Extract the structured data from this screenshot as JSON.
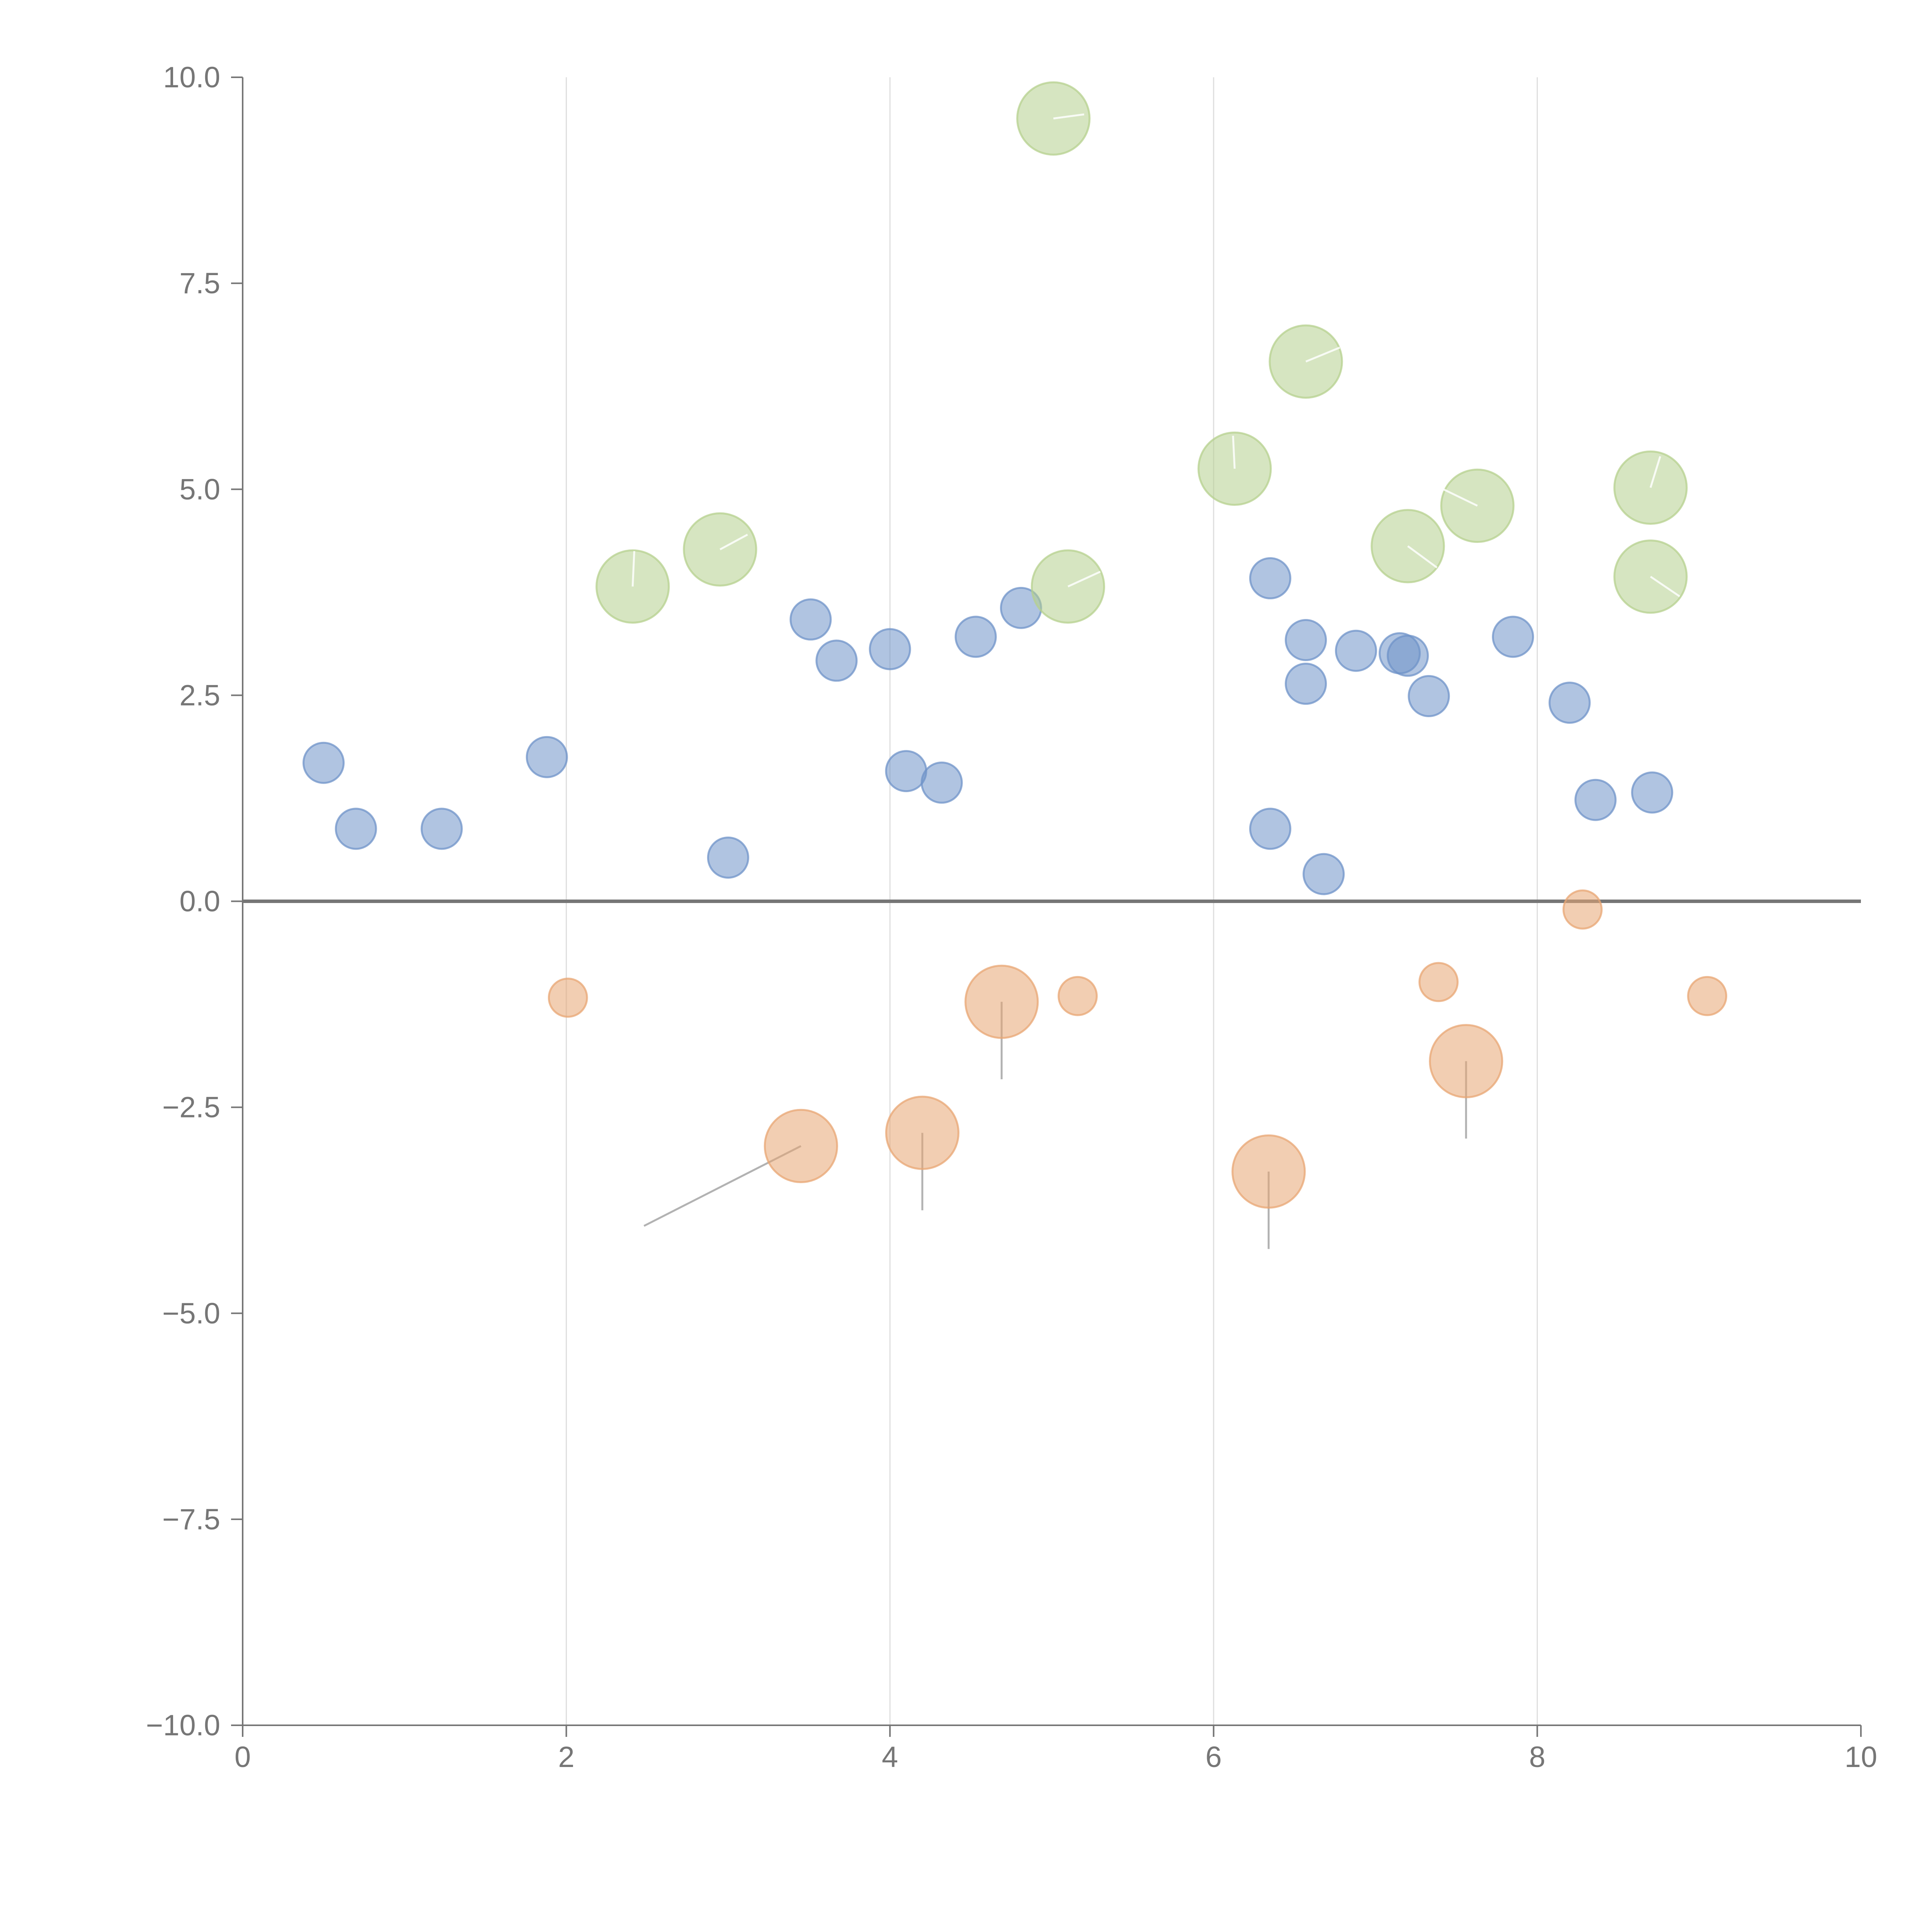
{
  "chart_data": {
    "type": "scatter",
    "title": "",
    "xlabel": "",
    "ylabel": "",
    "xlim": [
      0,
      10
    ],
    "ylim": [
      -10,
      10
    ],
    "grid": "vertical",
    "x_ticks": [
      0,
      2,
      4,
      6,
      8,
      10
    ],
    "x_tick_labels": [
      "0",
      "2",
      "4",
      "6",
      "8",
      "10"
    ],
    "y_ticks": [
      10,
      7.5,
      5,
      2.5,
      0,
      -2.5,
      -5,
      -7.5,
      -10
    ],
    "y_tick_labels": [
      "10.0",
      "7.5",
      "5.0",
      "2.5",
      "0.0",
      "−2.5",
      "−5.0",
      "−7.5",
      "−10.0"
    ],
    "zero_line": 0,
    "series": [
      {
        "name": "blue",
        "color": "#6f93c8",
        "points": [
          {
            "x": 0.5,
            "y": 1.68,
            "r": 1
          },
          {
            "x": 0.7,
            "y": 0.88,
            "r": 1
          },
          {
            "x": 1.23,
            "y": 0.88,
            "r": 1
          },
          {
            "x": 1.88,
            "y": 1.75,
            "r": 1
          },
          {
            "x": 3.0,
            "y": 0.53,
            "r": 1
          },
          {
            "x": 3.51,
            "y": 3.42,
            "r": 1
          },
          {
            "x": 3.67,
            "y": 2.92,
            "r": 1
          },
          {
            "x": 4.0,
            "y": 3.06,
            "r": 1
          },
          {
            "x": 4.1,
            "y": 1.58,
            "r": 1
          },
          {
            "x": 4.32,
            "y": 1.44,
            "r": 1
          },
          {
            "x": 4.53,
            "y": 3.21,
            "r": 1
          },
          {
            "x": 4.81,
            "y": 3.56,
            "r": 1
          },
          {
            "x": 6.35,
            "y": 3.92,
            "r": 1
          },
          {
            "x": 6.35,
            "y": 0.88,
            "r": 1
          },
          {
            "x": 6.57,
            "y": 3.17,
            "r": 1
          },
          {
            "x": 6.57,
            "y": 2.64,
            "r": 1
          },
          {
            "x": 6.68,
            "y": 0.33,
            "r": 1
          },
          {
            "x": 6.88,
            "y": 3.04,
            "r": 1
          },
          {
            "x": 7.15,
            "y": 3.01,
            "r": 1
          },
          {
            "x": 7.2,
            "y": 2.98,
            "r": 1
          },
          {
            "x": 7.33,
            "y": 2.49,
            "r": 1
          },
          {
            "x": 7.85,
            "y": 3.21,
            "r": 1
          },
          {
            "x": 8.2,
            "y": 2.41,
            "r": 1
          },
          {
            "x": 8.36,
            "y": 1.23,
            "r": 1
          },
          {
            "x": 8.71,
            "y": 1.32,
            "r": 1
          }
        ]
      },
      {
        "name": "green",
        "color": "#b5d08e",
        "points": [
          {
            "x": 2.41,
            "y": 3.82,
            "r": 1.8
          },
          {
            "x": 2.95,
            "y": 4.27,
            "r": 1.8
          },
          {
            "x": 5.01,
            "y": 9.5,
            "r": 1.8
          },
          {
            "x": 5.1,
            "y": 3.82,
            "r": 1.8
          },
          {
            "x": 6.13,
            "y": 5.25,
            "r": 1.8
          },
          {
            "x": 6.57,
            "y": 6.55,
            "r": 1.8
          },
          {
            "x": 7.2,
            "y": 4.31,
            "r": 1.8
          },
          {
            "x": 7.63,
            "y": 4.8,
            "r": 1.8
          },
          {
            "x": 8.7,
            "y": 5.02,
            "r": 1.8
          },
          {
            "x": 8.7,
            "y": 3.94,
            "r": 1.8
          }
        ]
      },
      {
        "name": "orange",
        "color": "#e8a673",
        "points": [
          {
            "x": 2.01,
            "y": -1.17,
            "r": 0.95
          },
          {
            "x": 3.45,
            "y": -2.97,
            "r": 1.8
          },
          {
            "x": 4.2,
            "y": -2.81,
            "r": 1.8
          },
          {
            "x": 4.69,
            "y": -1.22,
            "r": 1.8
          },
          {
            "x": 5.16,
            "y": -1.15,
            "r": 0.95
          },
          {
            "x": 6.34,
            "y": -3.28,
            "r": 1.8
          },
          {
            "x": 7.39,
            "y": -0.98,
            "r": 0.95
          },
          {
            "x": 7.56,
            "y": -1.94,
            "r": 1.8
          },
          {
            "x": 8.28,
            "y": -0.1,
            "r": 0.95
          },
          {
            "x": 9.05,
            "y": -1.15,
            "r": 0.95
          }
        ]
      }
    ],
    "leader_lines": [
      {
        "x1": 3.45,
        "y1": -2.97,
        "x2": 2.48,
        "y2": -3.94,
        "tone": "gray"
      },
      {
        "x1": 4.2,
        "y1": -2.81,
        "x2": 4.2,
        "y2": -3.75,
        "tone": "gray"
      },
      {
        "x1": 4.69,
        "y1": -1.22,
        "x2": 4.69,
        "y2": -2.16,
        "tone": "gray"
      },
      {
        "x1": 6.34,
        "y1": -3.28,
        "x2": 6.34,
        "y2": -4.22,
        "tone": "gray"
      },
      {
        "x1": 7.56,
        "y1": -1.94,
        "x2": 7.56,
        "y2": -2.88,
        "tone": "gray"
      },
      {
        "x1": 2.41,
        "y1": 3.82,
        "x2": 2.42,
        "y2": 4.25,
        "tone": "white"
      },
      {
        "x1": 2.95,
        "y1": 4.27,
        "x2": 3.12,
        "y2": 4.45,
        "tone": "white"
      },
      {
        "x1": 5.01,
        "y1": 9.5,
        "x2": 5.2,
        "y2": 9.55,
        "tone": "white"
      },
      {
        "x1": 5.1,
        "y1": 3.82,
        "x2": 5.3,
        "y2": 4.0,
        "tone": "white"
      },
      {
        "x1": 6.13,
        "y1": 5.25,
        "x2": 6.12,
        "y2": 5.65,
        "tone": "white"
      },
      {
        "x1": 6.57,
        "y1": 6.55,
        "x2": 6.78,
        "y2": 6.72,
        "tone": "white"
      },
      {
        "x1": 7.2,
        "y1": 4.31,
        "x2": 7.38,
        "y2": 4.05,
        "tone": "white"
      },
      {
        "x1": 7.63,
        "y1": 4.8,
        "x2": 7.42,
        "y2": 5.0,
        "tone": "white"
      },
      {
        "x1": 8.7,
        "y1": 5.02,
        "x2": 8.76,
        "y2": 5.4,
        "tone": "white"
      },
      {
        "x1": 8.7,
        "y1": 3.94,
        "x2": 8.88,
        "y2": 3.7,
        "tone": "white"
      }
    ]
  }
}
